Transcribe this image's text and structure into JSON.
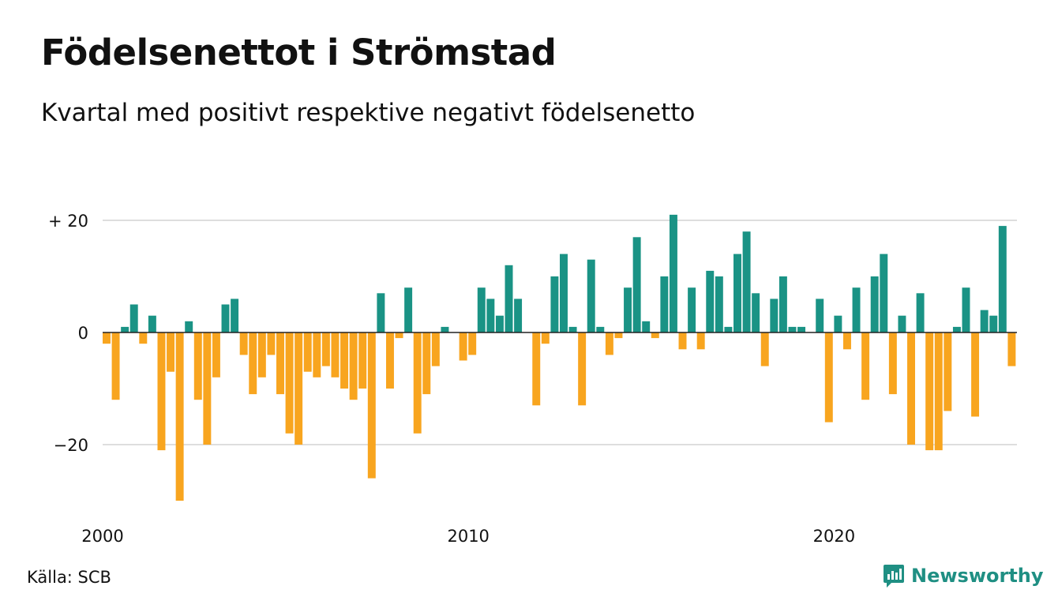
{
  "header": {
    "title": "Födelsenettot i Strömstad",
    "subtitle": "Kvartal med positivt respektive negativt födelsenetto"
  },
  "footer": {
    "source": "Källa: SCB",
    "brand": "Newsworthy",
    "brand_icon": "bar-chart-bubble-icon"
  },
  "colors": {
    "positive": "#1a9385",
    "negative": "#f8a51f",
    "gridline": "#dedede",
    "zero_line": "#222222",
    "brand": "#1f8f83"
  },
  "chart_data": {
    "type": "bar",
    "x_start": "2000 Q1",
    "frequency": "quarterly",
    "xticks": [
      "2000",
      "2010",
      "2020"
    ],
    "yticks": [
      20,
      0,
      -20
    ],
    "ytick_labels": [
      "+ 20",
      "0",
      "−20"
    ],
    "ylim": [
      -32,
      23
    ],
    "grid": true,
    "legend": "none",
    "values": [
      -2,
      -12,
      1,
      5,
      -2,
      3,
      -21,
      -7,
      -30,
      2,
      -12,
      -20,
      -8,
      5,
      6,
      -4,
      -11,
      -8,
      -4,
      -11,
      -18,
      -20,
      -7,
      -8,
      -6,
      -8,
      -10,
      -12,
      -10,
      -26,
      7,
      -10,
      -1,
      8,
      -18,
      -11,
      -6,
      1,
      0,
      -5,
      -4,
      8,
      6,
      3,
      12,
      6,
      0,
      -13,
      -2,
      10,
      14,
      1,
      -13,
      13,
      1,
      -4,
      -1,
      8,
      17,
      2,
      -1,
      10,
      21,
      -3,
      8,
      -3,
      11,
      10,
      1,
      14,
      18,
      7,
      -6,
      6,
      10,
      1,
      1,
      0,
      6,
      -16,
      3,
      -3,
      8,
      -12,
      10,
      14,
      -11,
      3,
      -20,
      7,
      -21,
      -21,
      -14,
      1,
      8,
      -15,
      4,
      3,
      19,
      -6
    ]
  }
}
